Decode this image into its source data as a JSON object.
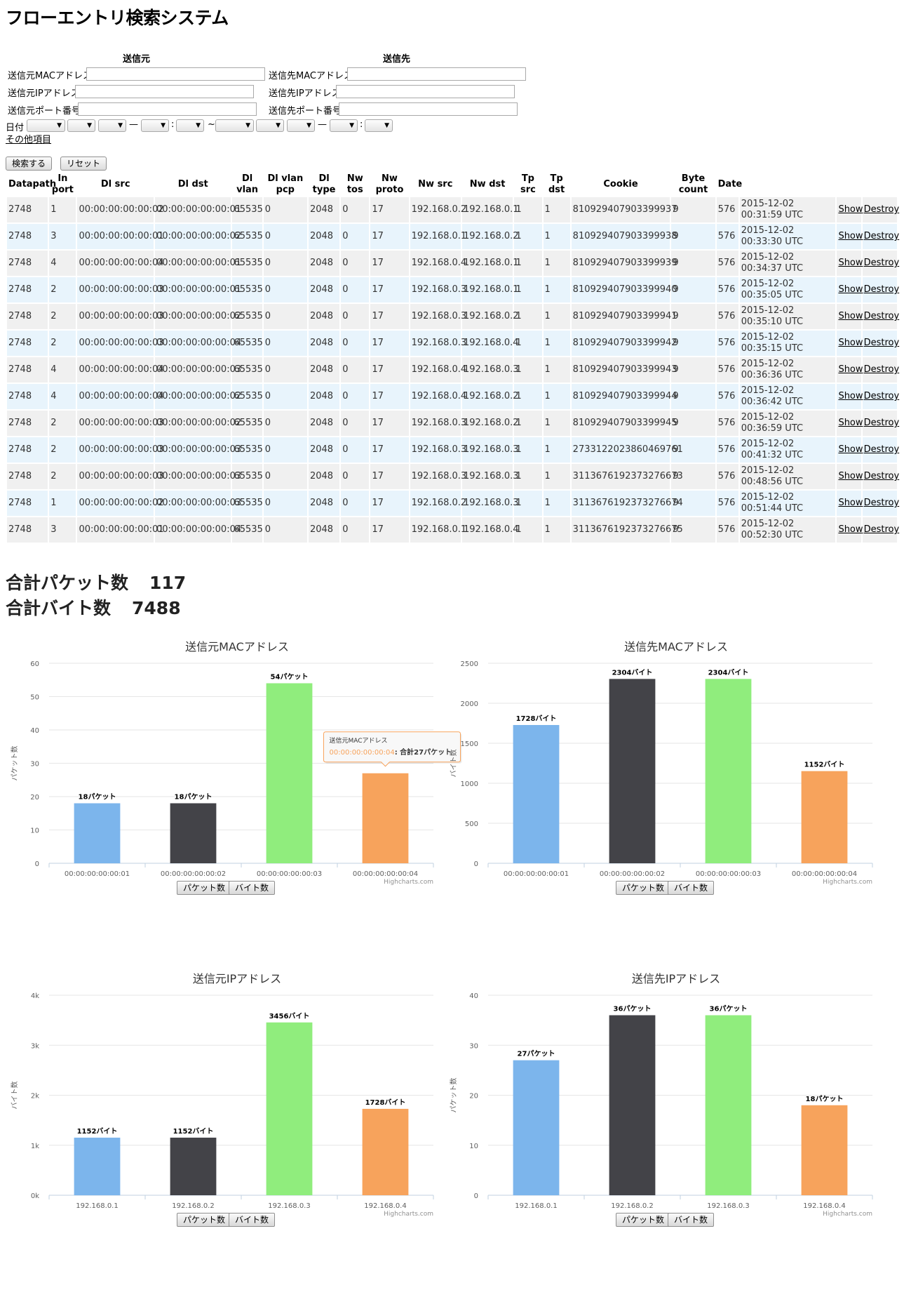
{
  "title": "フローエントリ検索システム",
  "form": {
    "src_heading": "送信元",
    "dst_heading": "送信先",
    "src_mac_label": "送信元MACアドレス",
    "src_ip_label": "送信元IPアドレス",
    "src_port_label": "送信元ポート番号",
    "dst_mac_label": "送信先MACアドレス",
    "dst_ip_label": "送信先IPアドレス",
    "dst_port_label": "送信先ポート番号",
    "date_label": "日付",
    "date_sep_dash": "—",
    "date_sep_colon": ":",
    "date_sep_tilde": "~",
    "select_arrow": "▼",
    "other_items": "その他項目",
    "search_button": "検索する",
    "reset_button": "リセット"
  },
  "table": {
    "headers": [
      "Datapath",
      "In port",
      "Dl src",
      "Dl dst",
      "Dl vlan",
      "Dl vlan pcp",
      "Dl type",
      "Nw tos",
      "Nw proto",
      "Nw src",
      "Nw dst",
      "Tp src",
      "Tp dst",
      "Cookie",
      "Byte count",
      "Date",
      "",
      ""
    ],
    "show_label": "Show",
    "destroy_label": "Destroy",
    "rows": [
      [
        "2748",
        "1",
        "00:00:00:00:00:02",
        "00:00:00:00:00:01",
        "65535",
        "0",
        "2048",
        "0",
        "17",
        "192.168.0.2",
        "192.168.0.1",
        "1",
        "1",
        "810929407903399937",
        "9",
        "576",
        "2015-12-02 00:31:59 UTC"
      ],
      [
        "2748",
        "3",
        "00:00:00:00:00:01",
        "00:00:00:00:00:02",
        "65535",
        "0",
        "2048",
        "0",
        "17",
        "192.168.0.1",
        "192.168.0.2",
        "1",
        "1",
        "810929407903399938",
        "9",
        "576",
        "2015-12-02 00:33:30 UTC"
      ],
      [
        "2748",
        "4",
        "00:00:00:00:00:04",
        "00:00:00:00:00:01",
        "65535",
        "0",
        "2048",
        "0",
        "17",
        "192.168.0.4",
        "192.168.0.1",
        "1",
        "1",
        "810929407903399939",
        "9",
        "576",
        "2015-12-02 00:34:37 UTC"
      ],
      [
        "2748",
        "2",
        "00:00:00:00:00:03",
        "00:00:00:00:00:01",
        "65535",
        "0",
        "2048",
        "0",
        "17",
        "192.168.0.3",
        "192.168.0.1",
        "1",
        "1",
        "810929407903399940",
        "9",
        "576",
        "2015-12-02 00:35:05 UTC"
      ],
      [
        "2748",
        "2",
        "00:00:00:00:00:03",
        "00:00:00:00:00:02",
        "65535",
        "0",
        "2048",
        "0",
        "17",
        "192.168.0.3",
        "192.168.0.2",
        "1",
        "1",
        "810929407903399941",
        "9",
        "576",
        "2015-12-02 00:35:10 UTC"
      ],
      [
        "2748",
        "2",
        "00:00:00:00:00:03",
        "00:00:00:00:00:04",
        "65535",
        "0",
        "2048",
        "0",
        "17",
        "192.168.0.3",
        "192.168.0.4",
        "1",
        "1",
        "810929407903399942",
        "9",
        "576",
        "2015-12-02 00:35:15 UTC"
      ],
      [
        "2748",
        "4",
        "00:00:00:00:00:04",
        "00:00:00:00:00:03",
        "65535",
        "0",
        "2048",
        "0",
        "17",
        "192.168.0.4",
        "192.168.0.3",
        "1",
        "1",
        "810929407903399943",
        "9",
        "576",
        "2015-12-02 00:36:36 UTC"
      ],
      [
        "2748",
        "4",
        "00:00:00:00:00:04",
        "00:00:00:00:00:02",
        "65535",
        "0",
        "2048",
        "0",
        "17",
        "192.168.0.4",
        "192.168.0.2",
        "1",
        "1",
        "810929407903399944",
        "9",
        "576",
        "2015-12-02 00:36:42 UTC"
      ],
      [
        "2748",
        "2",
        "00:00:00:00:00:03",
        "00:00:00:00:00:02",
        "65535",
        "0",
        "2048",
        "0",
        "17",
        "192.168.0.3",
        "192.168.0.2",
        "1",
        "1",
        "810929407903399945",
        "9",
        "576",
        "2015-12-02 00:36:59 UTC"
      ],
      [
        "2748",
        "2",
        "00:00:00:00:00:03",
        "00:00:00:00:00:03",
        "65535",
        "0",
        "2048",
        "0",
        "17",
        "192.168.0.3",
        "192.168.0.3",
        "1",
        "1",
        "2733122023860469761",
        "9",
        "576",
        "2015-12-02 00:41:32 UTC"
      ],
      [
        "2748",
        "2",
        "00:00:00:00:00:03",
        "00:00:00:00:00:03",
        "65535",
        "0",
        "2048",
        "0",
        "17",
        "192.168.0.3",
        "192.168.0.3",
        "1",
        "1",
        "3113676192373276673",
        "9",
        "576",
        "2015-12-02 00:48:56 UTC"
      ],
      [
        "2748",
        "1",
        "00:00:00:00:00:02",
        "00:00:00:00:00:03",
        "65535",
        "0",
        "2048",
        "0",
        "17",
        "192.168.0.2",
        "192.168.0.3",
        "1",
        "1",
        "3113676192373276674",
        "9",
        "576",
        "2015-12-02 00:51:44 UTC"
      ],
      [
        "2748",
        "3",
        "00:00:00:00:00:01",
        "00:00:00:00:00:04",
        "65535",
        "0",
        "2048",
        "0",
        "17",
        "192.168.0.1",
        "192.168.0.4",
        "1",
        "1",
        "3113676192373276675",
        "9",
        "576",
        "2015-12-02 00:52:30 UTC"
      ]
    ]
  },
  "totals": {
    "packets_label": "合計パケット数",
    "packets_value": "117",
    "bytes_label": "合計バイト数",
    "bytes_value": "7488"
  },
  "chart_buttons": {
    "packets": "パケット数",
    "bytes": "バイト数"
  },
  "colors": [
    "#7cb5ec",
    "#434348",
    "#90ed7d",
    "#f7a35c"
  ],
  "chart_data": [
    {
      "type": "bar",
      "title": "送信元MACアドレス",
      "ylabel": "パケット数",
      "categories": [
        "00:00:00:00:00:01",
        "00:00:00:00:00:02",
        "00:00:00:00:00:03",
        "00:00:00:00:00:04"
      ],
      "values": [
        18,
        18,
        54,
        27
      ],
      "data_labels": [
        "18パケット",
        "18パケット",
        "54パケット",
        ""
      ],
      "yticks": [
        "0",
        "10",
        "20",
        "30",
        "40",
        "50",
        "60"
      ],
      "ylim": [
        0,
        60
      ],
      "credit": "Highcharts.com",
      "tooltip": {
        "series": "送信元MACアドレス",
        "category": "00:00:00:00:00:04",
        "text": ": 合計27パケット",
        "index": 3
      }
    },
    {
      "type": "bar",
      "title": "送信先MACアドレス",
      "ylabel": "バイト数",
      "categories": [
        "00:00:00:00:00:01",
        "00:00:00:00:00:02",
        "00:00:00:00:00:03",
        "00:00:00:00:00:04"
      ],
      "values": [
        1728,
        2304,
        2304,
        1152
      ],
      "data_labels": [
        "1728バイト",
        "2304バイト",
        "2304バイト",
        "1152バイト"
      ],
      "yticks": [
        "0",
        "500",
        "1000",
        "1500",
        "2000",
        "2500"
      ],
      "ylim": [
        0,
        2500
      ],
      "credit": "Highcharts.com"
    },
    {
      "type": "bar",
      "title": "送信元IPアドレス",
      "ylabel": "バイト数",
      "categories": [
        "192.168.0.1",
        "192.168.0.2",
        "192.168.0.3",
        "192.168.0.4"
      ],
      "values": [
        1152,
        1152,
        3456,
        1728
      ],
      "data_labels": [
        "1152バイト",
        "1152バイト",
        "3456バイト",
        "1728バイト"
      ],
      "yticks": [
        "0k",
        "1k",
        "2k",
        "3k",
        "4k"
      ],
      "ylim": [
        0,
        4000
      ],
      "credit": "Highcharts.com"
    },
    {
      "type": "bar",
      "title": "送信先IPアドレス",
      "ylabel": "パケット数",
      "categories": [
        "192.168.0.1",
        "192.168.0.2",
        "192.168.0.3",
        "192.168.0.4"
      ],
      "values": [
        27,
        36,
        36,
        18
      ],
      "data_labels": [
        "27パケット",
        "36パケット",
        "36パケット",
        "18パケット"
      ],
      "yticks": [
        "0",
        "10",
        "20",
        "30",
        "40"
      ],
      "ylim": [
        0,
        40
      ],
      "credit": "Highcharts.com"
    }
  ]
}
